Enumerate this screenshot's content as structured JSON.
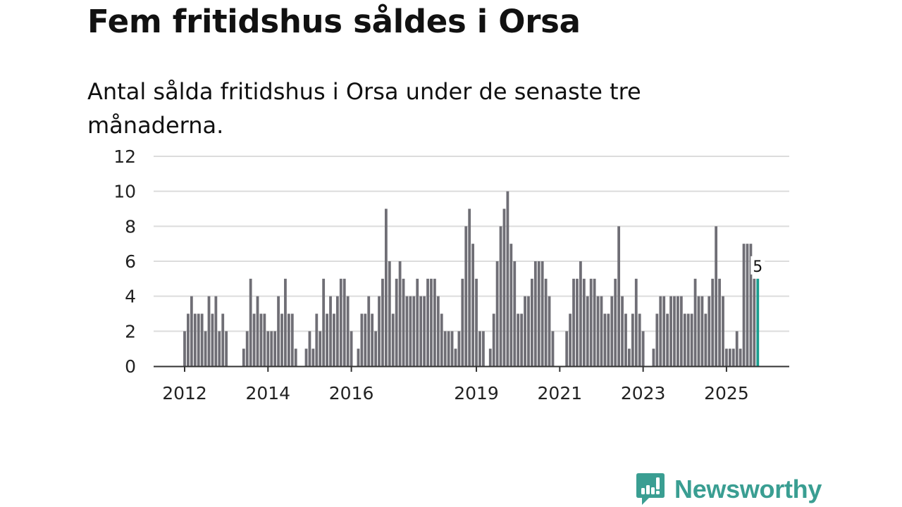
{
  "title": "Fem fritidshus såldes i Orsa",
  "subtitle": "Antal sålda fritidshus i Orsa under de senaste tre månaderna.",
  "logo": {
    "text": "Newsworthy",
    "icon": "chart-speech-bubble-icon"
  },
  "colors": {
    "bar": "#6f6e75",
    "highlight": "#1a9e8f",
    "grid": "#dcdcdc",
    "axis": "#333333",
    "brand": "#3a9e92"
  },
  "chart_data": {
    "type": "bar",
    "title": "Fem fritidshus såldes i Orsa",
    "subtitle": "Antal sålda fritidshus i Orsa under de senaste tre månaderna.",
    "xlabel": "",
    "ylabel": "",
    "x_start": "2012-01",
    "x_step": "month",
    "ylim": [
      0,
      12
    ],
    "yticks": [
      0,
      2,
      4,
      6,
      8,
      10,
      12
    ],
    "xticks": [
      {
        "label": "2012",
        "index": 0
      },
      {
        "label": "2014",
        "index": 24
      },
      {
        "label": "2016",
        "index": 48
      },
      {
        "label": "2019",
        "index": 84
      },
      {
        "label": "2021",
        "index": 108
      },
      {
        "label": "2023",
        "index": 132
      },
      {
        "label": "2025",
        "index": 156
      }
    ],
    "grid": true,
    "highlight_index": 165,
    "highlight_label": "5",
    "values": [
      2,
      3,
      4,
      3,
      3,
      3,
      2,
      4,
      3,
      4,
      2,
      3,
      2,
      0,
      0,
      0,
      0,
      1,
      2,
      5,
      3,
      4,
      3,
      3,
      2,
      2,
      2,
      4,
      3,
      5,
      3,
      3,
      1,
      0,
      0,
      1,
      2,
      1,
      3,
      2,
      5,
      3,
      4,
      3,
      4,
      5,
      5,
      4,
      2,
      0,
      1,
      3,
      3,
      4,
      3,
      2,
      4,
      5,
      9,
      6,
      3,
      5,
      6,
      5,
      4,
      4,
      4,
      5,
      4,
      4,
      5,
      5,
      5,
      4,
      3,
      2,
      2,
      2,
      1,
      2,
      5,
      8,
      9,
      7,
      5,
      2,
      2,
      0,
      1,
      3,
      6,
      8,
      9,
      10,
      7,
      6,
      3,
      3,
      4,
      4,
      5,
      6,
      6,
      6,
      5,
      4,
      2,
      0,
      0,
      0,
      2,
      3,
      5,
      5,
      6,
      5,
      4,
      5,
      5,
      4,
      4,
      3,
      3,
      4,
      5,
      8,
      4,
      3,
      1,
      3,
      5,
      3,
      2,
      0,
      0,
      1,
      3,
      4,
      4,
      3,
      4,
      4,
      4,
      4,
      3,
      3,
      3,
      5,
      4,
      4,
      3,
      4,
      5,
      8,
      5,
      4,
      1,
      1,
      1,
      2,
      1,
      7,
      7,
      7,
      5,
      5
    ]
  }
}
